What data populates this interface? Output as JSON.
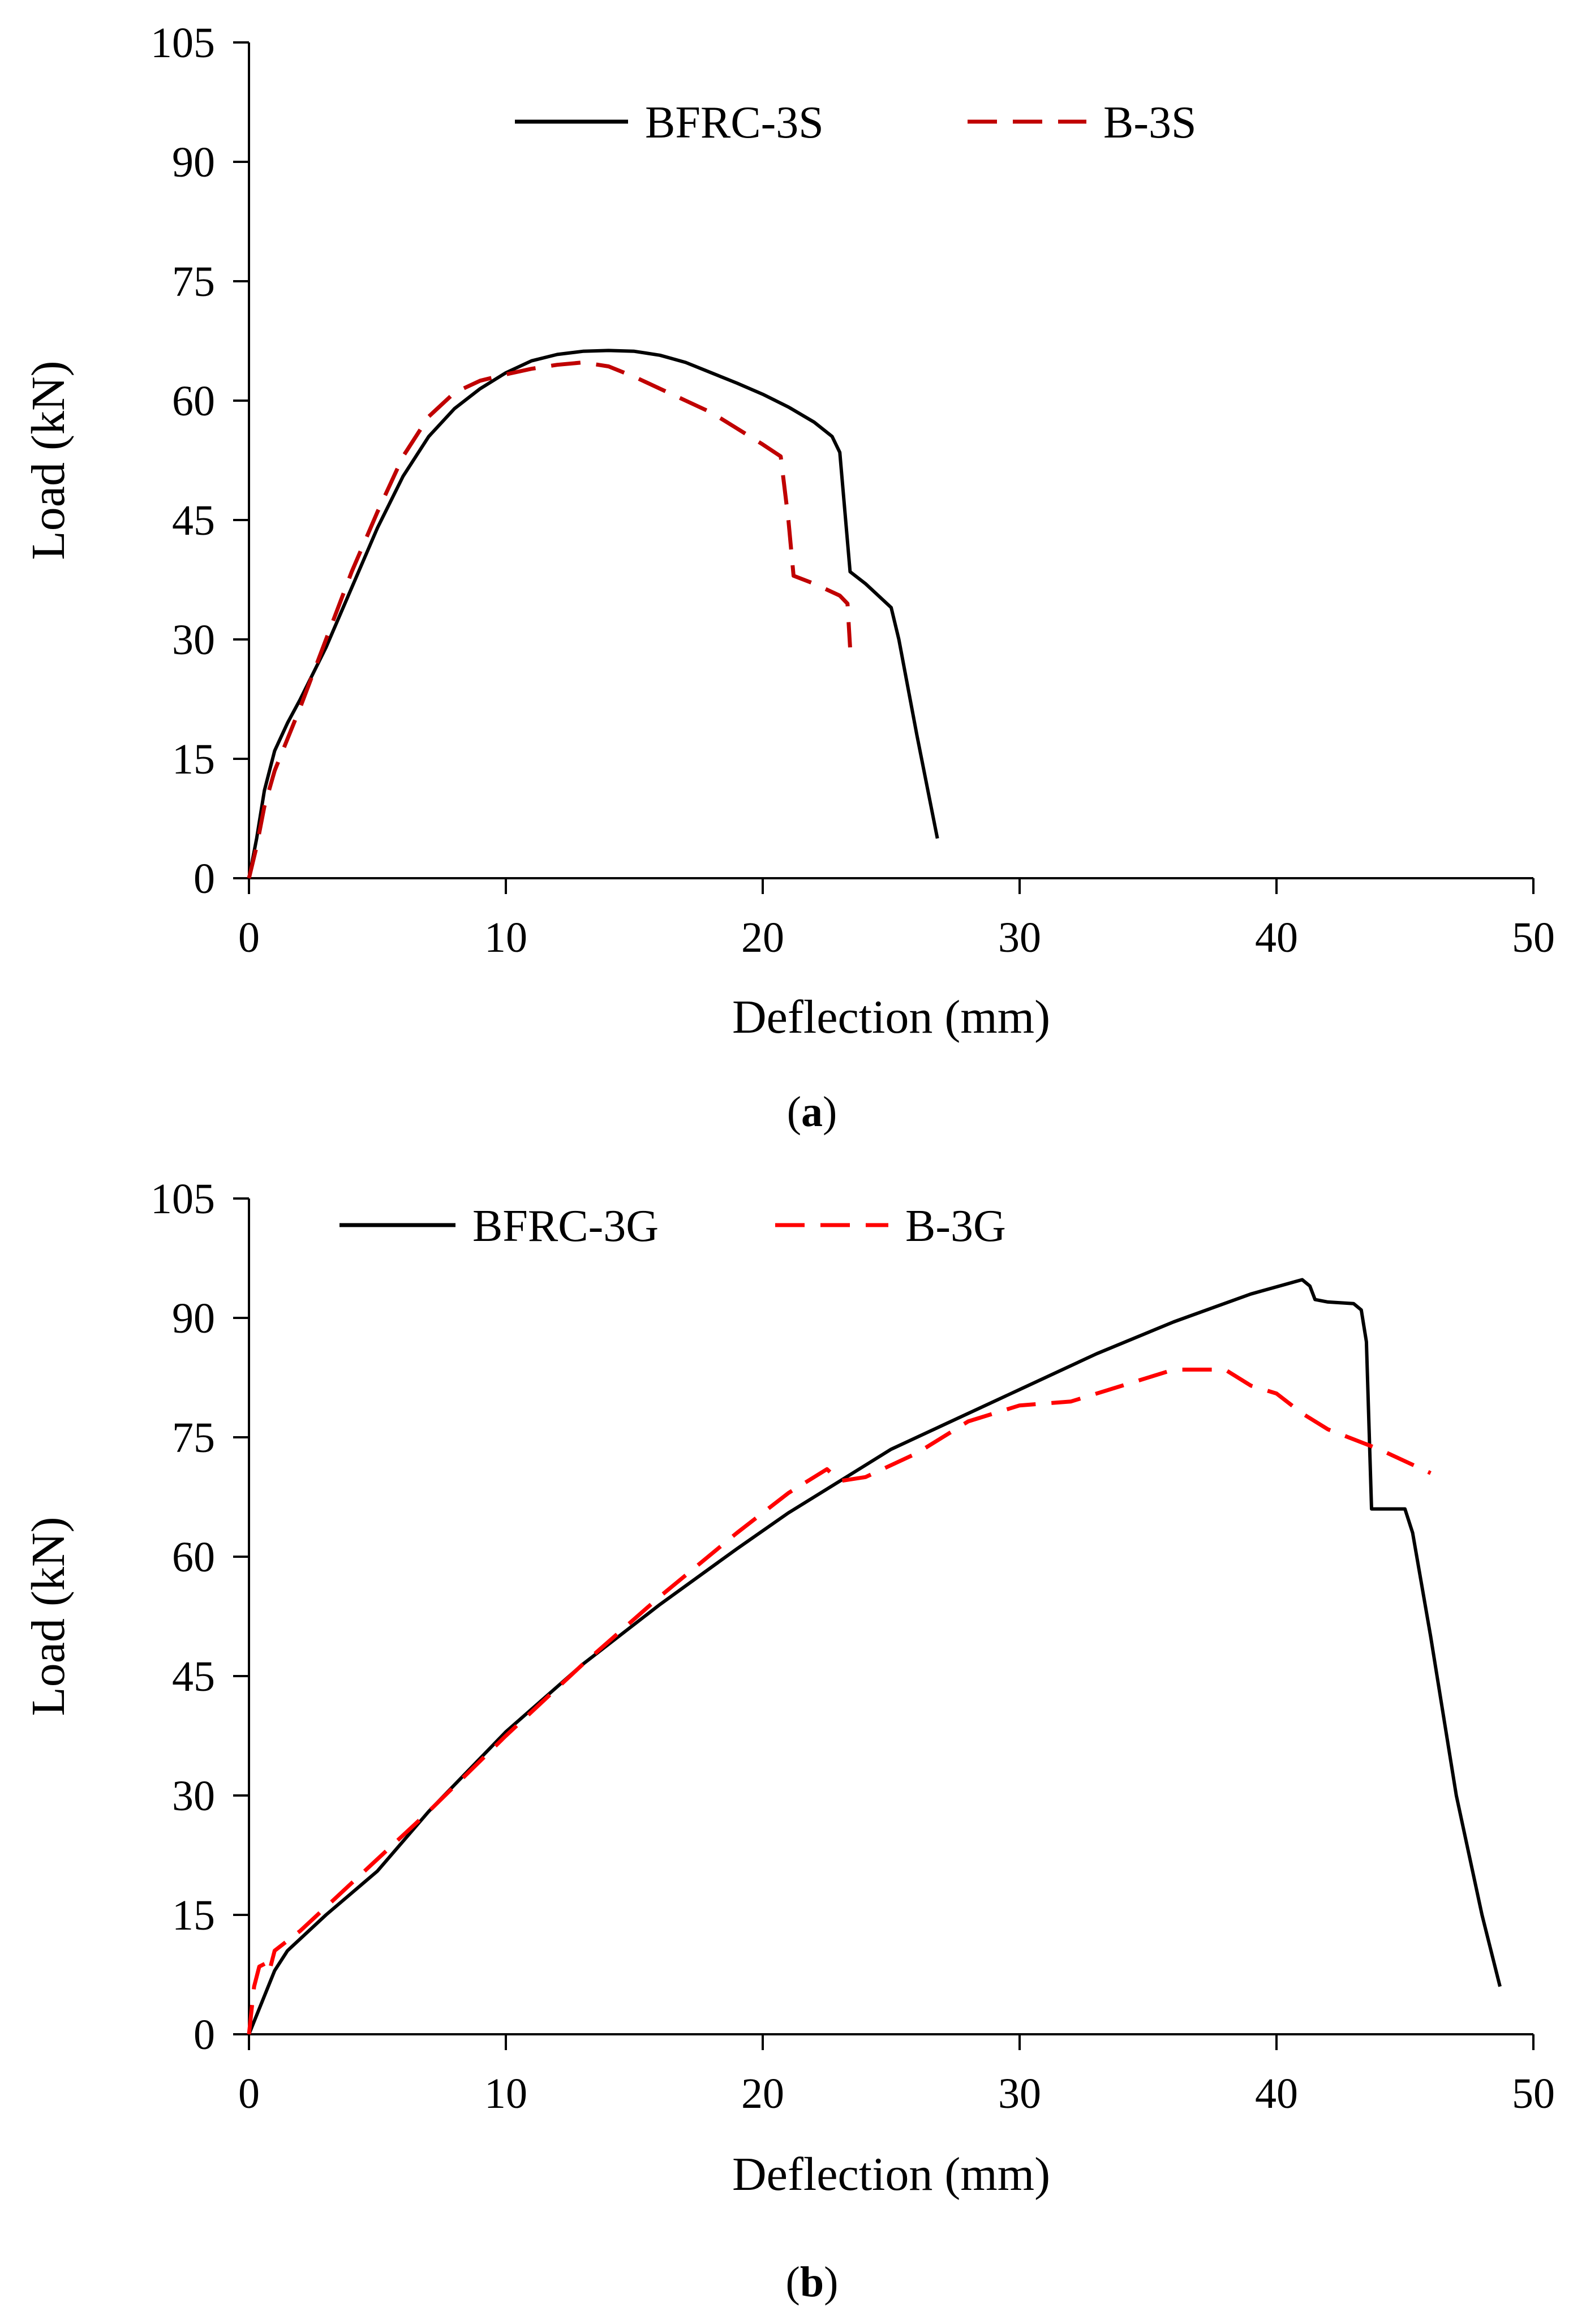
{
  "chart_data": [
    {
      "type": "line",
      "caption_pre": "(",
      "caption_letter": "a",
      "caption_post": ")",
      "title": "",
      "xlabel": "Deflection (mm)",
      "ylabel": "Load (kN)",
      "xlim": [
        0,
        50
      ],
      "ylim": [
        0,
        105
      ],
      "xticks": [
        "0",
        "10",
        "20",
        "30",
        "40",
        "50"
      ],
      "yticks": [
        "0",
        "15",
        "30",
        "45",
        "60",
        "75",
        "90",
        "105"
      ],
      "grid": false,
      "legend_position": "top-center",
      "series": [
        {
          "name": "BFRC-3S",
          "color": "#000000",
          "dash": "solid",
          "points": [
            [
              0,
              0
            ],
            [
              0.3,
              5
            ],
            [
              0.6,
              11
            ],
            [
              1,
              16
            ],
            [
              1.5,
              19.5
            ],
            [
              2,
              22.5
            ],
            [
              3,
              29
            ],
            [
              4,
              36.5
            ],
            [
              5,
              44
            ],
            [
              6,
              50.5
            ],
            [
              7,
              55.5
            ],
            [
              8,
              59
            ],
            [
              9,
              61.5
            ],
            [
              10,
              63.5
            ],
            [
              11,
              65
            ],
            [
              12,
              65.8
            ],
            [
              13,
              66.2
            ],
            [
              14,
              66.3
            ],
            [
              15,
              66.2
            ],
            [
              16,
              65.7
            ],
            [
              17,
              64.8
            ],
            [
              18,
              63.5
            ],
            [
              19,
              62.2
            ],
            [
              20,
              60.8
            ],
            [
              21,
              59.2
            ],
            [
              22,
              57.3
            ],
            [
              22.7,
              55.5
            ],
            [
              23,
              53.5
            ],
            [
              23.2,
              46
            ],
            [
              23.4,
              38.5
            ],
            [
              24,
              37
            ],
            [
              24.5,
              35.5
            ],
            [
              25,
              34
            ],
            [
              25.3,
              30
            ],
            [
              26,
              18
            ],
            [
              26.8,
              5
            ]
          ]
        },
        {
          "name": "B-3S",
          "color": "#c00000",
          "dash": "long-dash",
          "points": [
            [
              0,
              0
            ],
            [
              0.3,
              4
            ],
            [
              0.6,
              9
            ],
            [
              1,
              13.5
            ],
            [
              1.5,
              17.5
            ],
            [
              2,
              21.5
            ],
            [
              3,
              30
            ],
            [
              4,
              38.5
            ],
            [
              5,
              46
            ],
            [
              6,
              53
            ],
            [
              7,
              58
            ],
            [
              8,
              61
            ],
            [
              9,
              62.5
            ],
            [
              10,
              63.3
            ],
            [
              11,
              64.0
            ],
            [
              12,
              64.5
            ],
            [
              13,
              64.8
            ],
            [
              14,
              64.3
            ],
            [
              15,
              63
            ],
            [
              16,
              61.5
            ],
            [
              17,
              60
            ],
            [
              18,
              58.5
            ],
            [
              19,
              56.5
            ],
            [
              20,
              54.5
            ],
            [
              20.7,
              53
            ],
            [
              21,
              45
            ],
            [
              21.2,
              38
            ],
            [
              22,
              37
            ],
            [
              23,
              35.5
            ],
            [
              23.3,
              34.5
            ],
            [
              23.4,
              29
            ]
          ]
        }
      ]
    },
    {
      "type": "line",
      "caption_pre": "(",
      "caption_letter": "b",
      "caption_post": ")",
      "title": "",
      "xlabel": "Deflection (mm)",
      "ylabel": "Load (kN)",
      "xlim": [
        0,
        50
      ],
      "ylim": [
        0,
        105
      ],
      "xticks": [
        "0",
        "10",
        "20",
        "30",
        "40",
        "50"
      ],
      "yticks": [
        "0",
        "15",
        "30",
        "45",
        "60",
        "75",
        "90",
        "105"
      ],
      "grid": false,
      "legend_position": "top-left",
      "series": [
        {
          "name": "BFRC-3G",
          "color": "#000000",
          "dash": "solid",
          "points": [
            [
              0,
              0
            ],
            [
              0.5,
              4
            ],
            [
              1,
              8
            ],
            [
              1.5,
              10.5
            ],
            [
              3,
              15
            ],
            [
              5,
              20.5
            ],
            [
              7,
              28
            ],
            [
              10,
              38
            ],
            [
              13,
              46.5
            ],
            [
              16,
              54
            ],
            [
              19,
              61
            ],
            [
              21,
              65.5
            ],
            [
              23,
              69.5
            ],
            [
              25,
              73.5
            ],
            [
              27,
              76.5
            ],
            [
              30,
              81
            ],
            [
              33,
              85.5
            ],
            [
              36,
              89.5
            ],
            [
              39,
              93
            ],
            [
              41,
              94.8
            ],
            [
              41.3,
              94
            ],
            [
              41.5,
              92.3
            ],
            [
              42,
              92
            ],
            [
              43,
              91.8
            ],
            [
              43.3,
              91
            ],
            [
              43.5,
              87
            ],
            [
              43.7,
              66
            ],
            [
              45,
              66
            ],
            [
              45.3,
              63
            ],
            [
              46,
              50
            ],
            [
              47,
              30
            ],
            [
              48,
              15
            ],
            [
              48.7,
              6
            ]
          ]
        },
        {
          "name": "B-3G",
          "color": "#ff0000",
          "dash": "long-dash",
          "points": [
            [
              0,
              0
            ],
            [
              0.2,
              6
            ],
            [
              0.4,
              8.5
            ],
            [
              0.7,
              9
            ],
            [
              0.8,
              8
            ],
            [
              1,
              10.5
            ],
            [
              2,
              13
            ],
            [
              3,
              16
            ],
            [
              5,
              22
            ],
            [
              7,
              28
            ],
            [
              10,
              37.5
            ],
            [
              13,
              46.5
            ],
            [
              16,
              55
            ],
            [
              19,
              63
            ],
            [
              21,
              68
            ],
            [
              22.5,
              71
            ],
            [
              23,
              69.5
            ],
            [
              24,
              70
            ],
            [
              26,
              73
            ],
            [
              28,
              77
            ],
            [
              30,
              79
            ],
            [
              32,
              79.5
            ],
            [
              34,
              81.5
            ],
            [
              36,
              83.5
            ],
            [
              38,
              83.5
            ],
            [
              39,
              81.5
            ],
            [
              40,
              80.5
            ],
            [
              41,
              78
            ],
            [
              42,
              76
            ],
            [
              44,
              73.5
            ],
            [
              46,
              70.5
            ]
          ]
        }
      ]
    }
  ]
}
